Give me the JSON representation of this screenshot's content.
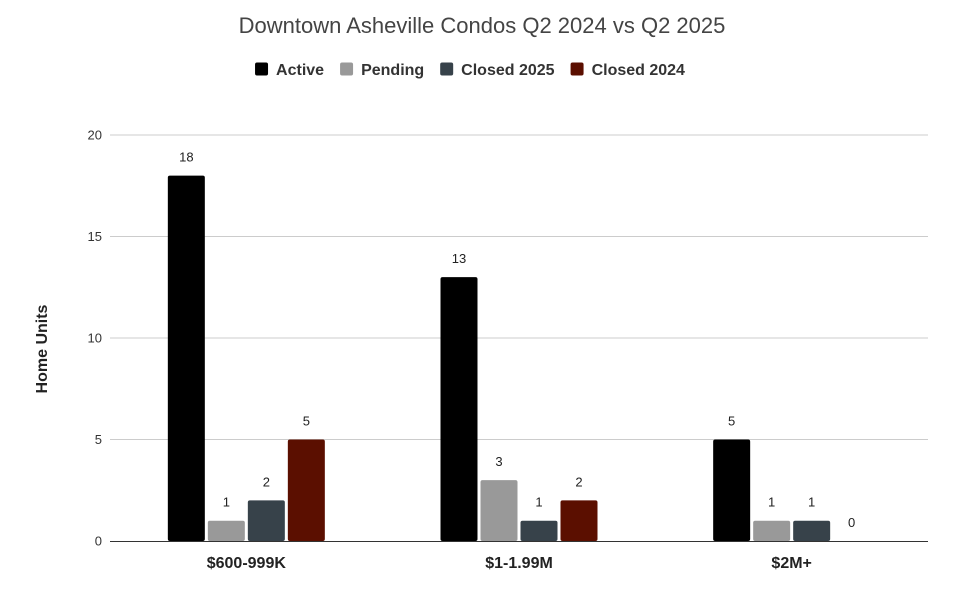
{
  "chart_data": {
    "type": "bar",
    "title": "Downtown Asheville Condos Q2 2024 vs Q2 2025",
    "xlabel": "",
    "ylabel": "Home Units",
    "ylim": [
      0,
      20
    ],
    "yticks": [
      0,
      5,
      10,
      15,
      20
    ],
    "grid": true,
    "legend_position": "top",
    "categories": [
      "$600-999K",
      "$1-1.99M",
      "$2M+"
    ],
    "series": [
      {
        "name": "Active",
        "color": "#000000",
        "values": [
          18,
          13,
          5
        ]
      },
      {
        "name": "Pending",
        "color": "#999999",
        "values": [
          1,
          3,
          1
        ]
      },
      {
        "name": "Closed 2025",
        "color": "#37424a",
        "values": [
          2,
          1,
          1
        ]
      },
      {
        "name": "Closed 2024",
        "color": "#5b0f00",
        "values": [
          5,
          2,
          0
        ]
      }
    ]
  }
}
